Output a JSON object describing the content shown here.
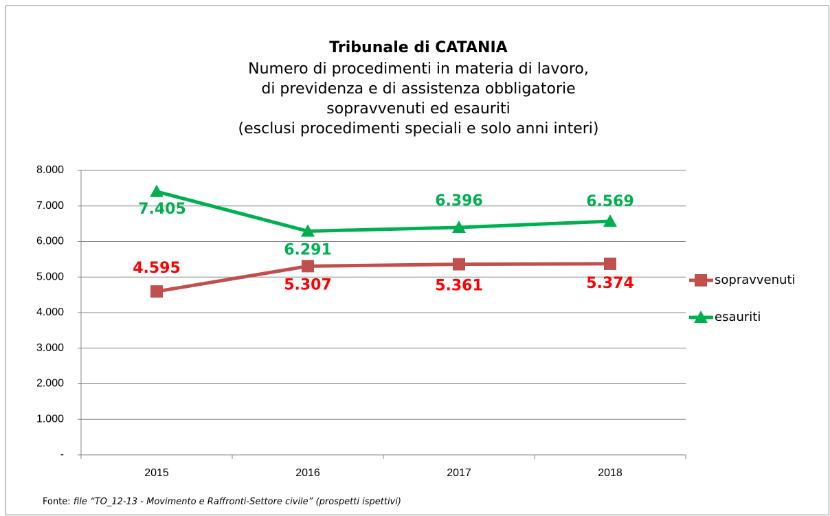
{
  "chart_data": {
    "type": "line",
    "title": "Tribunale di CATANIA",
    "subtitle": [
      "Numero di procedimenti in materia di lavoro,",
      "di previdenza e di assistenza obbligatorie",
      "sopravvenuti ed esauriti",
      "(esclusi procedimenti speciali e solo anni interi)"
    ],
    "categories": [
      "2015",
      "2016",
      "2017",
      "2018"
    ],
    "series": [
      {
        "name": "sopravvenuti",
        "color": "#c0504d",
        "label_color": "#ff0000",
        "marker": "square",
        "values": [
          4595,
          5307,
          5361,
          5374
        ],
        "value_labels": [
          "4.595",
          "5.307",
          "5.361",
          "5.374"
        ]
      },
      {
        "name": "esauriti",
        "color": "#00b050",
        "label_color": "#00b050",
        "marker": "triangle",
        "values": [
          7405,
          6291,
          6396,
          6569
        ],
        "value_labels": [
          "7.405",
          "6.291",
          "6.396",
          "6.569"
        ]
      }
    ],
    "ylim": [
      0,
      8000
    ],
    "yticks": [
      {
        "value": 0,
        "label": "-"
      },
      {
        "value": 1000,
        "label": "1.000"
      },
      {
        "value": 2000,
        "label": "2.000"
      },
      {
        "value": 3000,
        "label": "3.000"
      },
      {
        "value": 4000,
        "label": "4.000"
      },
      {
        "value": 5000,
        "label": "5.000"
      },
      {
        "value": 6000,
        "label": "6.000"
      },
      {
        "value": 7000,
        "label": "7.000"
      },
      {
        "value": 8000,
        "label": "8.000"
      }
    ],
    "grid": true,
    "legend": "right",
    "source_label": "Fonte:",
    "source": "file “TO_12-13 - Movimento e Raffronti-Settore civile” (prospetti ispettivi)"
  }
}
